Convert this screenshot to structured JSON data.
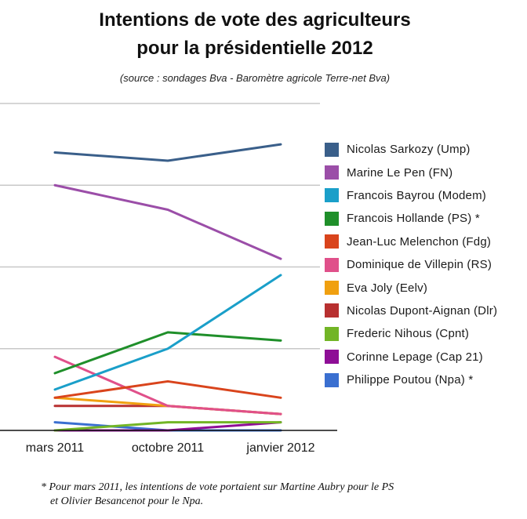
{
  "chart_data": {
    "type": "line",
    "title_lines": [
      "Intentions de vote des agriculteurs",
      "pour la présidentielle 2012"
    ],
    "subtitle": "(source : sondages Bva - Baromètre agricole Terre-net Bva)",
    "x": [
      "mars 2011",
      "octobre 2011",
      "janvier 2012"
    ],
    "ylim": [
      0,
      40
    ],
    "grid": true,
    "legend_position": "right",
    "series": [
      {
        "name": "Nicolas Sarkozy (Ump)",
        "color": "#3a5f8a",
        "values": [
          34,
          33,
          35
        ]
      },
      {
        "name": "Marine Le Pen (FN)",
        "color": "#9b4ea8",
        "values": [
          30,
          27,
          21
        ]
      },
      {
        "name": "Francois Bayrou (Modem)",
        "color": "#1a9fc9",
        "values": [
          5,
          10,
          19
        ]
      },
      {
        "name": "Francois Hollande (PS) *",
        "color": "#1f8f2a",
        "values": [
          7,
          12,
          11
        ]
      },
      {
        "name": "Jean-Luc Melenchon (Fdg)",
        "color": "#d9441c",
        "values": [
          4,
          6,
          4
        ]
      },
      {
        "name": "Dominique de Villepin (RS)",
        "color": "#e0508a",
        "values": [
          9,
          3,
          2
        ]
      },
      {
        "name": "Eva Joly (Eelv)",
        "color": "#f0a010",
        "values": [
          4,
          3,
          2
        ]
      },
      {
        "name": "Nicolas Dupont-Aignan (Dlr)",
        "color": "#b83030",
        "values": [
          3,
          3,
          2
        ]
      },
      {
        "name": "Frederic Nihous (Cpnt)",
        "color": "#72b526",
        "values": [
          0,
          1,
          1
        ]
      },
      {
        "name": "Corinne Lepage (Cap 21)",
        "color": "#8e0e96",
        "values": [
          0,
          0,
          1
        ]
      },
      {
        "name": "Philippe Poutou (Npa) *",
        "color": "#3a6fd0",
        "values": [
          1,
          0,
          0
        ]
      }
    ]
  },
  "footnote": {
    "line1": "* Pour mars 2011, les intentions de vote portaient sur Martine Aubry pour le PS",
    "line2": "et Olivier Besancenot pour le Npa."
  }
}
